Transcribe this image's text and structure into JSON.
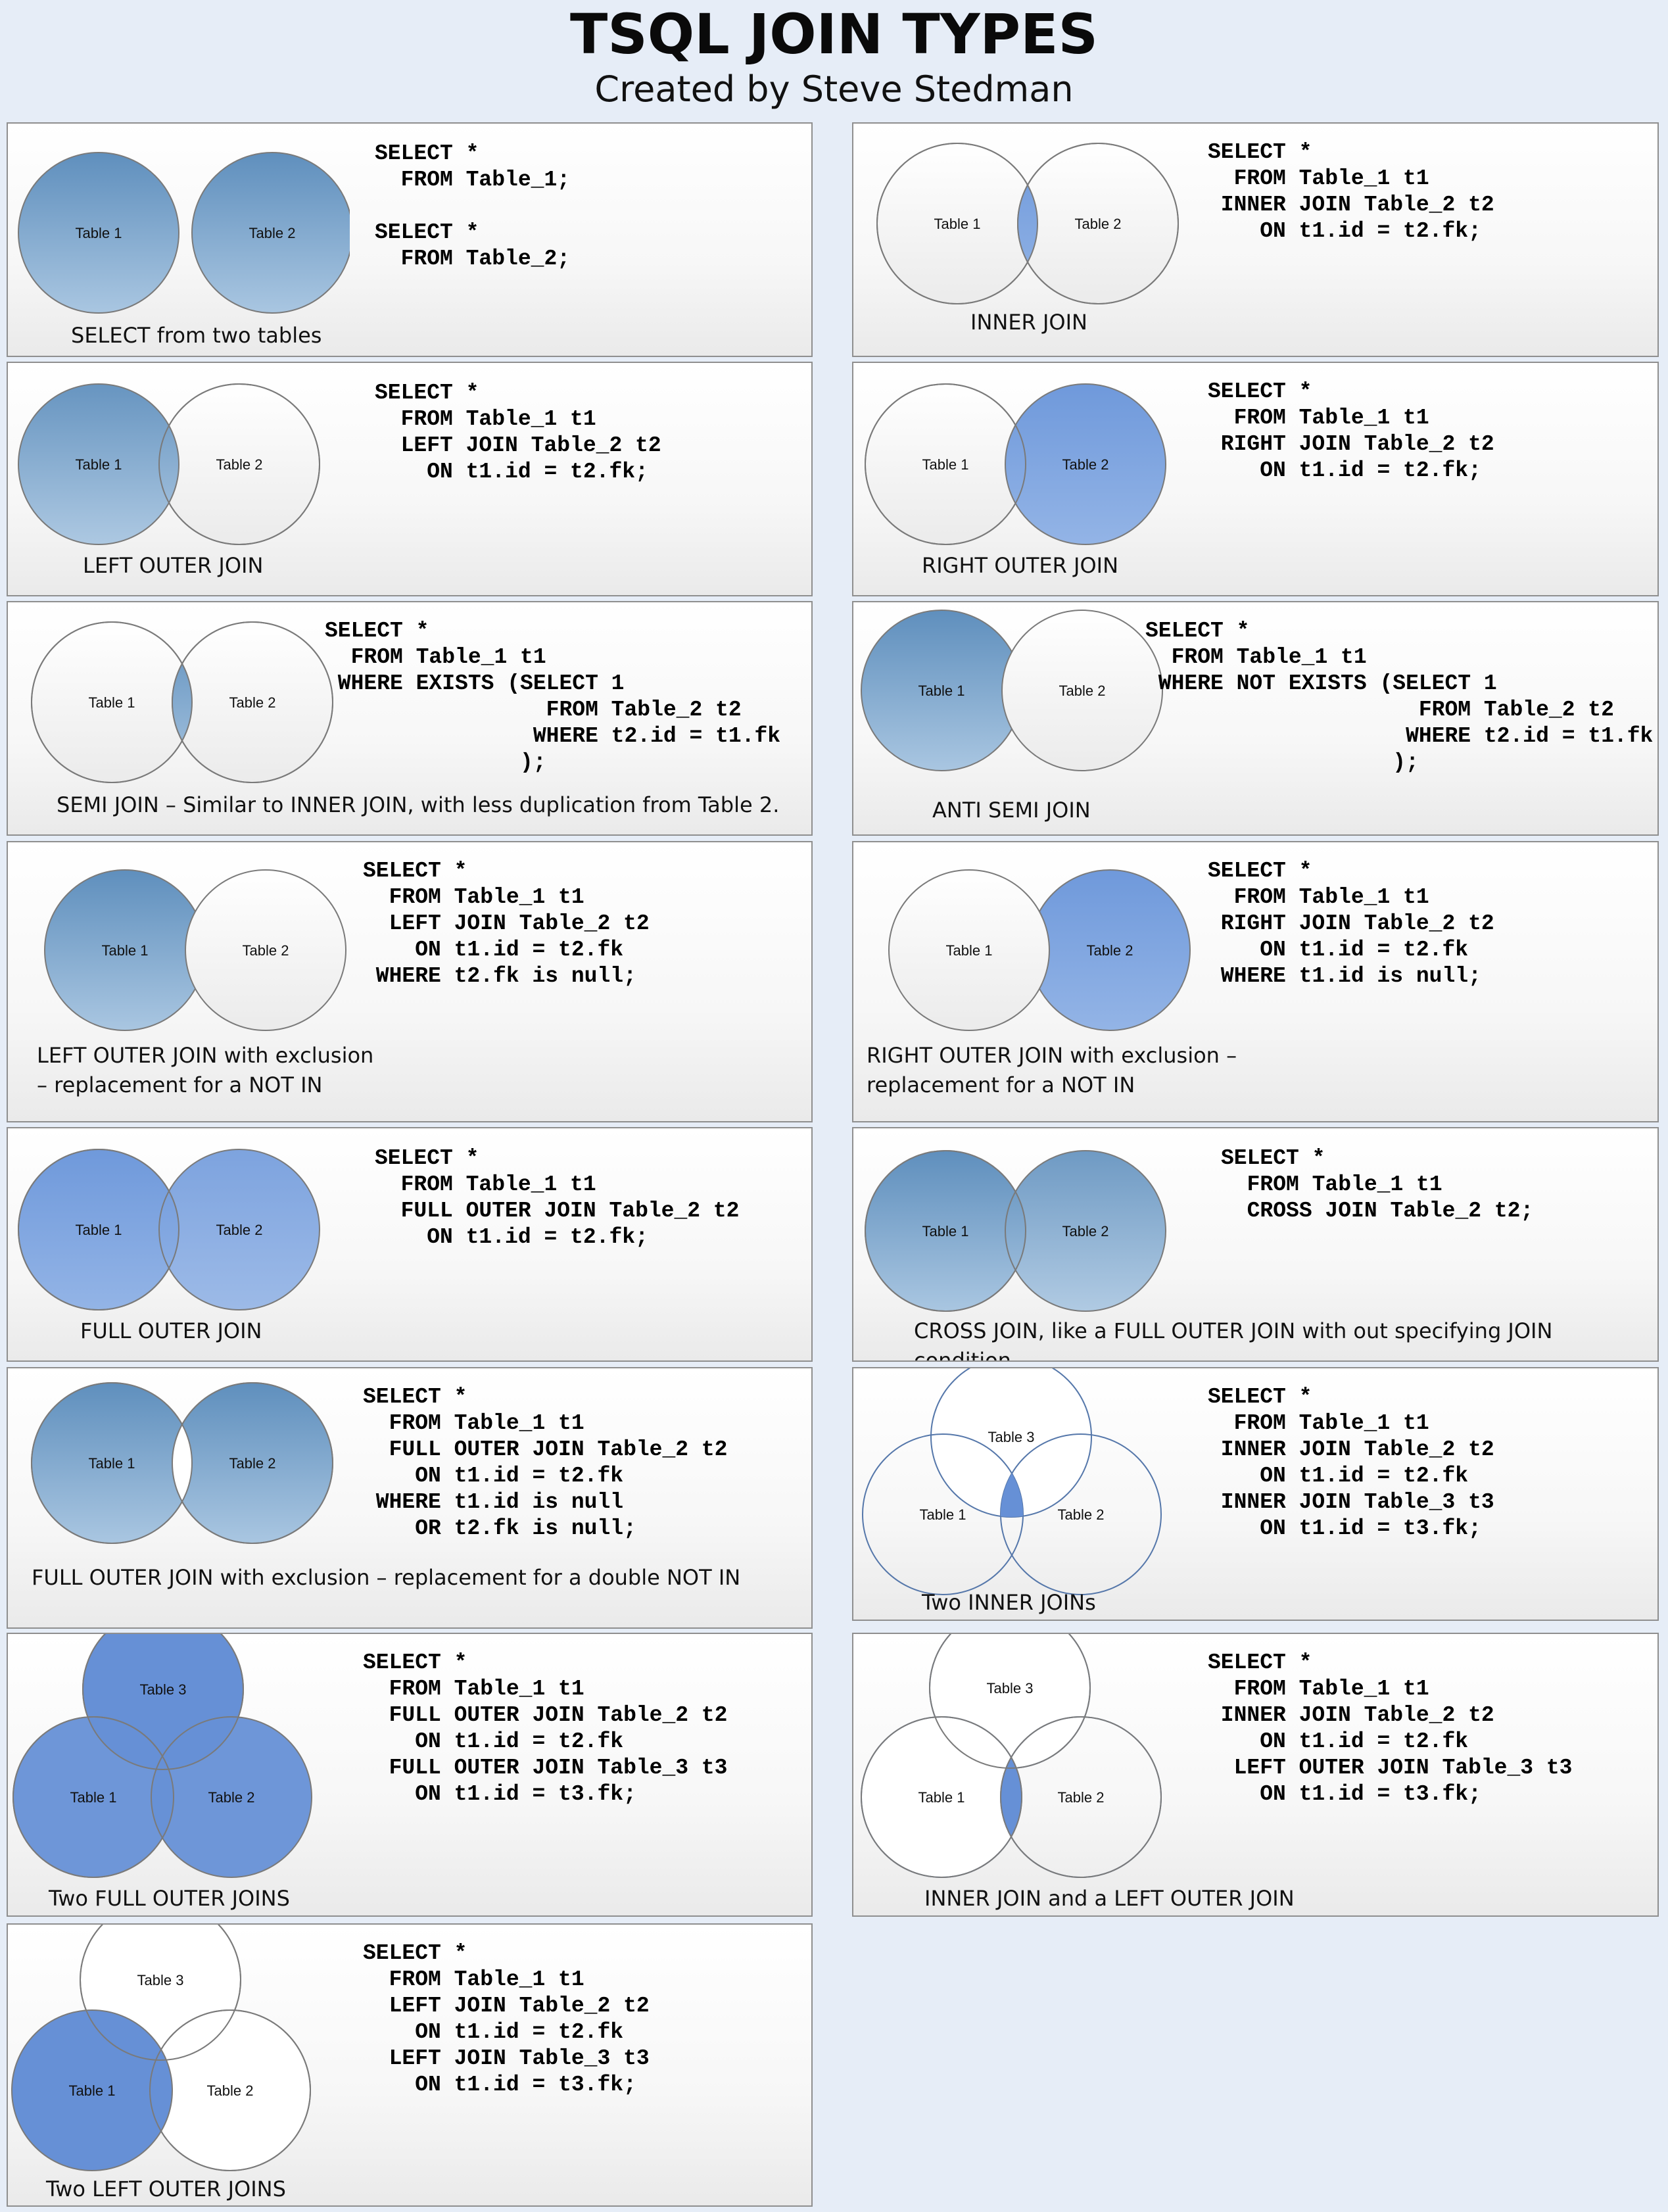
{
  "header": {
    "title": "TSQL JOIN TYPES",
    "subtitle": "Created by Steve Stedman"
  },
  "labels": {
    "table1": "Table 1",
    "table2": "Table 2",
    "table3": "Table 3"
  },
  "colors": {
    "fill_dark": "#6a9ac4",
    "fill_blue": "#7ba2dc",
    "fill_mid": "#6690d6",
    "stroke": "#7a7a7a",
    "panel_border": "#8f8f8f"
  },
  "panels": [
    {
      "id": "select-two-tables",
      "diagram": "two-separate",
      "caption": "SELECT from two tables",
      "code": "SELECT *\n  FROM Table_1;\n\nSELECT *\n  FROM Table_2;"
    },
    {
      "id": "inner-join",
      "diagram": "inner",
      "caption": "INNER JOIN",
      "code": "SELECT *\n  FROM Table_1 t1\n INNER JOIN Table_2 t2\n    ON t1.id = t2.fk;"
    },
    {
      "id": "left-outer-join",
      "diagram": "left",
      "caption": "LEFT OUTER JOIN",
      "code": "SELECT *\n  FROM Table_1 t1\n  LEFT JOIN Table_2 t2\n    ON t1.id = t2.fk;"
    },
    {
      "id": "right-outer-join",
      "diagram": "right",
      "caption": "RIGHT OUTER JOIN",
      "code": "SELECT *\n  FROM Table_1 t1\n RIGHT JOIN Table_2 t2\n    ON t1.id = t2.fk;"
    },
    {
      "id": "semi-join",
      "diagram": "semi",
      "caption": "SEMI JOIN – Similar to INNER JOIN, with less duplication from Table 2.",
      "code": "SELECT *\n  FROM Table_1 t1\n WHERE EXISTS (SELECT 1\n                 FROM Table_2 t2\n                WHERE t2.id = t1.fk\n               );"
    },
    {
      "id": "anti-semi-join",
      "diagram": "anti",
      "caption": "ANTI SEMI JOIN",
      "code": "SELECT *\n  FROM Table_1 t1\n WHERE NOT EXISTS (SELECT 1\n                     FROM Table_2 t2\n                    WHERE t2.id = t1.fk\n                   );"
    },
    {
      "id": "left-outer-join-exclusion",
      "diagram": "left-excl",
      "caption": "LEFT OUTER JOIN with exclusion\n  – replacement for a NOT IN",
      "code": "SELECT *\n  FROM Table_1 t1\n  LEFT JOIN Table_2 t2\n    ON t1.id = t2.fk\n WHERE t2.fk is null;"
    },
    {
      "id": "right-outer-join-exclusion",
      "diagram": "right-excl",
      "caption": "RIGHT OUTER JOIN with exclusion –\n     replacement for a NOT IN",
      "code": "SELECT *\n  FROM Table_1 t1\n RIGHT JOIN Table_2 t2\n    ON t1.id = t2.fk\n WHERE t1.id is null;"
    },
    {
      "id": "full-outer-join",
      "diagram": "full",
      "caption": "FULL OUTER JOIN",
      "code": "SELECT *\n  FROM Table_1 t1\n  FULL OUTER JOIN Table_2 t2\n    ON t1.id = t2.fk;"
    },
    {
      "id": "cross-join",
      "diagram": "cross",
      "caption": "CROSS JOIN, like a FULL OUTER JOIN with out specifying JOIN condition.",
      "code": "SELECT *\n  FROM Table_1 t1\n  CROSS JOIN Table_2 t2;"
    },
    {
      "id": "full-outer-join-exclusion",
      "diagram": "full-excl",
      "caption": "FULL OUTER JOIN with exclusion – replacement for a double NOT IN",
      "code": "SELECT *\n  FROM Table_1 t1\n  FULL OUTER JOIN Table_2 t2\n    ON t1.id = t2.fk\n WHERE t1.id is null\n    OR t2.fk is null;"
    },
    {
      "id": "two-inner-joins",
      "diagram": "three-inner",
      "caption": "Two INNER JOINs",
      "code": "SELECT *\n  FROM Table_1 t1\n INNER JOIN Table_2 t2\n    ON t1.id = t2.fk\n INNER JOIN Table_3 t3\n    ON t1.id = t3.fk;"
    },
    {
      "id": "two-full-outer-joins",
      "diagram": "three-full",
      "caption": "Two FULL OUTER JOINS",
      "code": "SELECT *\n  FROM Table_1 t1\n  FULL OUTER JOIN Table_2 t2\n    ON t1.id = t2.fk\n  FULL OUTER JOIN Table_3 t3\n    ON t1.id = t3.fk;"
    },
    {
      "id": "inner-and-left-outer-join",
      "diagram": "three-inner-left",
      "caption": "INNER JOIN and a LEFT OUTER JOIN",
      "code": "SELECT *\n  FROM Table_1 t1\n INNER JOIN Table_2 t2\n    ON t1.id = t2.fk\n  LEFT OUTER JOIN Table_3 t3\n    ON t1.id = t3.fk;"
    },
    {
      "id": "two-left-outer-joins",
      "diagram": "three-left",
      "caption": "Two LEFT OUTER JOINS",
      "code": "SELECT *\n  FROM Table_1 t1\n  LEFT JOIN Table_2 t2\n    ON t1.id = t2.fk\n  LEFT JOIN Table_3 t3\n    ON t1.id = t3.fk;"
    }
  ]
}
